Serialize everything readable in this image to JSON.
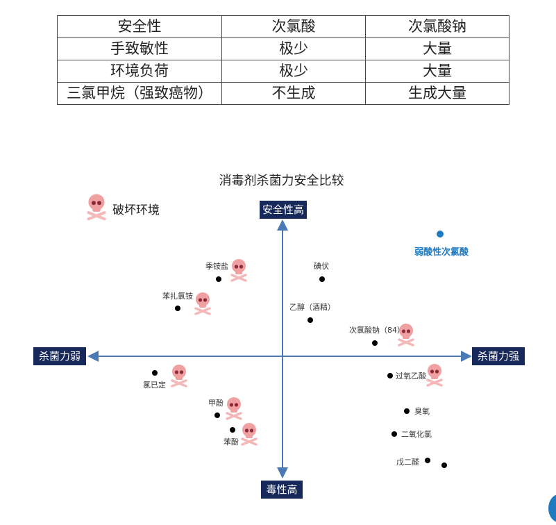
{
  "table": {
    "rows": [
      [
        "安全性",
        "次氯酸",
        "次氯酸钠"
      ],
      [
        "手致敏性",
        "极少",
        "大量"
      ],
      [
        "环境负荷",
        "极少",
        "大量"
      ],
      [
        "三氯甲烷（强致癌物）",
        "不生成",
        "生成大量"
      ]
    ]
  },
  "diagram": {
    "title": "消毒剂杀菌力安全比较",
    "legend": {
      "label": "破坏环境",
      "icon": "skull-icon"
    },
    "axis_top": "安全性高",
    "axis_bottom": "毒性高",
    "axis_left": "杀菌力弱",
    "axis_right": "杀菌力强",
    "highlight": {
      "label": "弱酸性次氯酸",
      "color": "#1f7ac0"
    },
    "items": [
      {
        "label": "季铵盐",
        "skull": true
      },
      {
        "label": "苯扎氯铵",
        "skull": true
      },
      {
        "label": "碘伏",
        "skull": false
      },
      {
        "label": "乙醇（酒精）",
        "skull": false
      },
      {
        "label": "次氯酸钠（84）",
        "skull": true
      },
      {
        "label": "氯已定",
        "skull": true
      },
      {
        "label": "甲酚",
        "skull": true
      },
      {
        "label": "苯酚",
        "skull": true
      },
      {
        "label": "过氧乙酸",
        "skull": true
      },
      {
        "label": "臭氧",
        "skull": false
      },
      {
        "label": "二氧化氯",
        "skull": false
      },
      {
        "label": "戊二醛",
        "skull": false
      }
    ],
    "colors": {
      "axis": "#4a7ab5",
      "box": "#16295a",
      "skull": "#f0a0a0"
    }
  }
}
